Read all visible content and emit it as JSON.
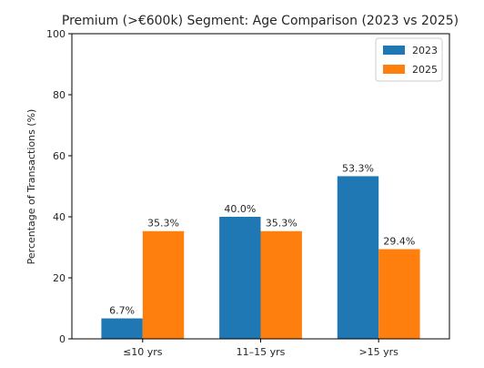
{
  "chart_data": {
    "type": "bar",
    "title": "Premium (>€600k) Segment: Age Comparison (2023 vs 2025)",
    "xlabel": "",
    "ylabel": "Percentage of Transactions (%)",
    "categories": [
      "≤10 yrs",
      "11–15 yrs",
      ">15 yrs"
    ],
    "series": [
      {
        "name": "2023",
        "values": [
          6.7,
          40.0,
          53.3
        ],
        "labels": [
          "6.7%",
          "40.0%",
          "53.3%"
        ],
        "color": "#1f77b4"
      },
      {
        "name": "2025",
        "values": [
          35.3,
          35.3,
          29.4
        ],
        "labels": [
          "35.3%",
          "35.3%",
          "29.4%"
        ],
        "color": "#ff7f0e"
      }
    ],
    "ylim": [
      0,
      100
    ],
    "yticks": [
      0,
      20,
      40,
      60,
      80,
      100
    ],
    "ytick_labels": [
      "0",
      "20",
      "40",
      "60",
      "80",
      "100"
    ],
    "grid": false,
    "legend_position": "top-right"
  }
}
